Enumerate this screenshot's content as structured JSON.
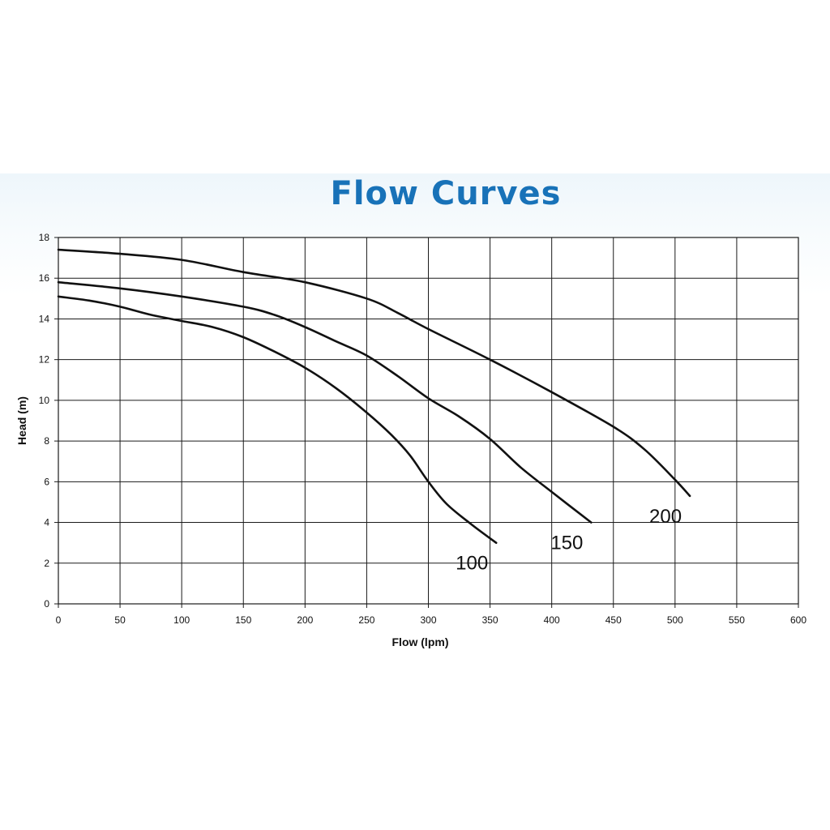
{
  "title": "Flow Curves",
  "chart_data": {
    "type": "line",
    "title": "Flow Curves",
    "xlabel": "Flow (lpm)",
    "ylabel": "Head (m)",
    "xlim": [
      0,
      600
    ],
    "ylim": [
      0,
      18
    ],
    "xticks": [
      0,
      50,
      100,
      150,
      200,
      250,
      300,
      350,
      400,
      450,
      500,
      550,
      600
    ],
    "yticks": [
      0,
      2,
      4,
      6,
      8,
      10,
      12,
      14,
      16,
      18
    ],
    "grid": true,
    "legend": "none",
    "line_color": "#111111",
    "series": [
      {
        "name": "100",
        "points": [
          [
            0,
            15.1
          ],
          [
            25,
            14.9
          ],
          [
            50,
            14.6
          ],
          [
            75,
            14.2
          ],
          [
            100,
            13.9
          ],
          [
            125,
            13.6
          ],
          [
            150,
            13.1
          ],
          [
            175,
            12.4
          ],
          [
            200,
            11.6
          ],
          [
            225,
            10.6
          ],
          [
            250,
            9.4
          ],
          [
            270,
            8.3
          ],
          [
            285,
            7.3
          ],
          [
            300,
            6.0
          ],
          [
            315,
            4.9
          ],
          [
            335,
            3.9
          ],
          [
            355,
            3.0
          ]
        ]
      },
      {
        "name": "150",
        "points": [
          [
            0,
            15.8
          ],
          [
            50,
            15.5
          ],
          [
            100,
            15.1
          ],
          [
            150,
            14.6
          ],
          [
            175,
            14.2
          ],
          [
            200,
            13.6
          ],
          [
            225,
            12.9
          ],
          [
            250,
            12.2
          ],
          [
            275,
            11.2
          ],
          [
            300,
            10.1
          ],
          [
            325,
            9.2
          ],
          [
            350,
            8.1
          ],
          [
            375,
            6.7
          ],
          [
            400,
            5.5
          ],
          [
            432,
            4.0
          ]
        ]
      },
      {
        "name": "200",
        "points": [
          [
            0,
            17.4
          ],
          [
            50,
            17.2
          ],
          [
            100,
            16.9
          ],
          [
            150,
            16.3
          ],
          [
            200,
            15.8
          ],
          [
            250,
            15.0
          ],
          [
            275,
            14.3
          ],
          [
            300,
            13.5
          ],
          [
            350,
            12.0
          ],
          [
            400,
            10.4
          ],
          [
            450,
            8.7
          ],
          [
            475,
            7.6
          ],
          [
            500,
            6.1
          ],
          [
            512,
            5.3
          ]
        ]
      }
    ]
  }
}
